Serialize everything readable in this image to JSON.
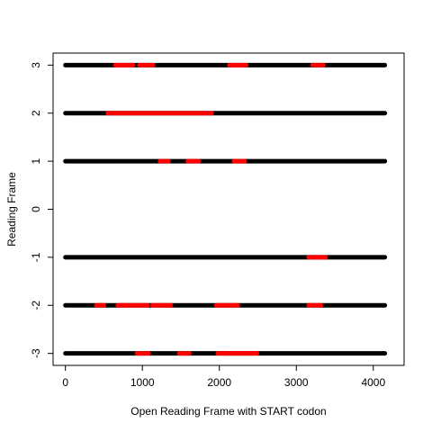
{
  "chart_data": {
    "type": "line",
    "title": "",
    "xlabel": "Open Reading Frame with START codon",
    "ylabel": "Reading Frame",
    "xlim": [
      -160,
      4400
    ],
    "ylim": [
      -3.25,
      3.25
    ],
    "x_ticks": [
      0,
      1000,
      2000,
      3000,
      4000
    ],
    "x_tick_labels": [
      "0",
      "1000",
      "2000",
      "3000",
      "4000"
    ],
    "y_ticks": [
      3,
      2,
      1,
      0,
      -1,
      -2,
      -3
    ],
    "y_tick_labels": [
      "3",
      "2",
      "1",
      "0",
      "-1",
      "-2",
      "-3"
    ],
    "grid": false,
    "legend": "none",
    "colors": {
      "baseline": "#000000",
      "orf": "#ff0000",
      "axis": "#000000"
    },
    "frames": [
      {
        "frame": 3,
        "baseline": [
          0,
          4150
        ],
        "orfs": [
          [
            650,
            880
          ],
          [
            960,
            1140
          ],
          [
            2130,
            2350
          ],
          [
            3210,
            3350
          ]
        ]
      },
      {
        "frame": 2,
        "baseline": [
          0,
          4150
        ],
        "orfs": [
          [
            550,
            1900
          ]
        ]
      },
      {
        "frame": 1,
        "baseline": [
          0,
          4150
        ],
        "orfs": [
          [
            1230,
            1340
          ],
          [
            1590,
            1730
          ],
          [
            2190,
            2330
          ]
        ]
      },
      {
        "frame": -1,
        "baseline": [
          0,
          4150
        ],
        "orfs": [
          [
            3160,
            3380
          ]
        ]
      },
      {
        "frame": -2,
        "baseline": [
          0,
          4150
        ],
        "orfs": [
          [
            400,
            500
          ],
          [
            680,
            1070
          ],
          [
            1130,
            1370
          ],
          [
            1960,
            2240
          ],
          [
            3160,
            3320
          ]
        ]
      },
      {
        "frame": -3,
        "baseline": [
          0,
          4150
        ],
        "orfs": [
          [
            930,
            1080
          ],
          [
            1480,
            1610
          ],
          [
            1980,
            2490
          ]
        ]
      }
    ]
  }
}
